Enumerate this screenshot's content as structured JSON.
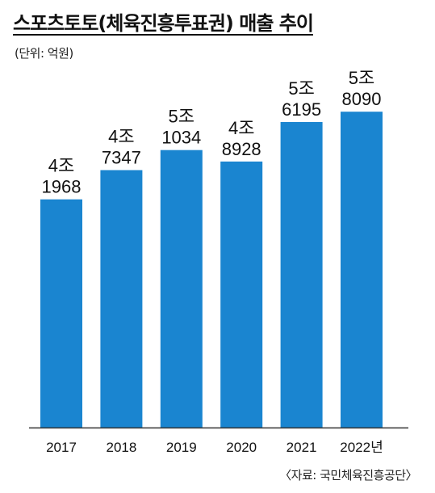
{
  "title": "스포츠토토(체육진흥투표권) 매출 추이",
  "unit_label": "(단위: 억원)",
  "source": "〈자료: 국민체육진흥공단〉",
  "colors": {
    "bar": "#1a85d0",
    "axis": "#333333",
    "text": "#111111"
  },
  "chart_data": {
    "type": "bar",
    "title": "스포츠토토(체육진흥투표권) 매출 추이",
    "unit": "억원",
    "categories": [
      "2017",
      "2018",
      "2019",
      "2020",
      "2021",
      "2022년"
    ],
    "values": [
      41968,
      47347,
      51034,
      48928,
      56195,
      58090
    ],
    "data_labels": [
      [
        "4조",
        "1968"
      ],
      [
        "4조",
        "7347"
      ],
      [
        "5조",
        "1034"
      ],
      [
        "4조",
        "8928"
      ],
      [
        "5조",
        "6195"
      ],
      [
        "5조",
        "8090"
      ]
    ],
    "ylim": [
      0,
      66000
    ],
    "grid": false,
    "legend": "none"
  }
}
